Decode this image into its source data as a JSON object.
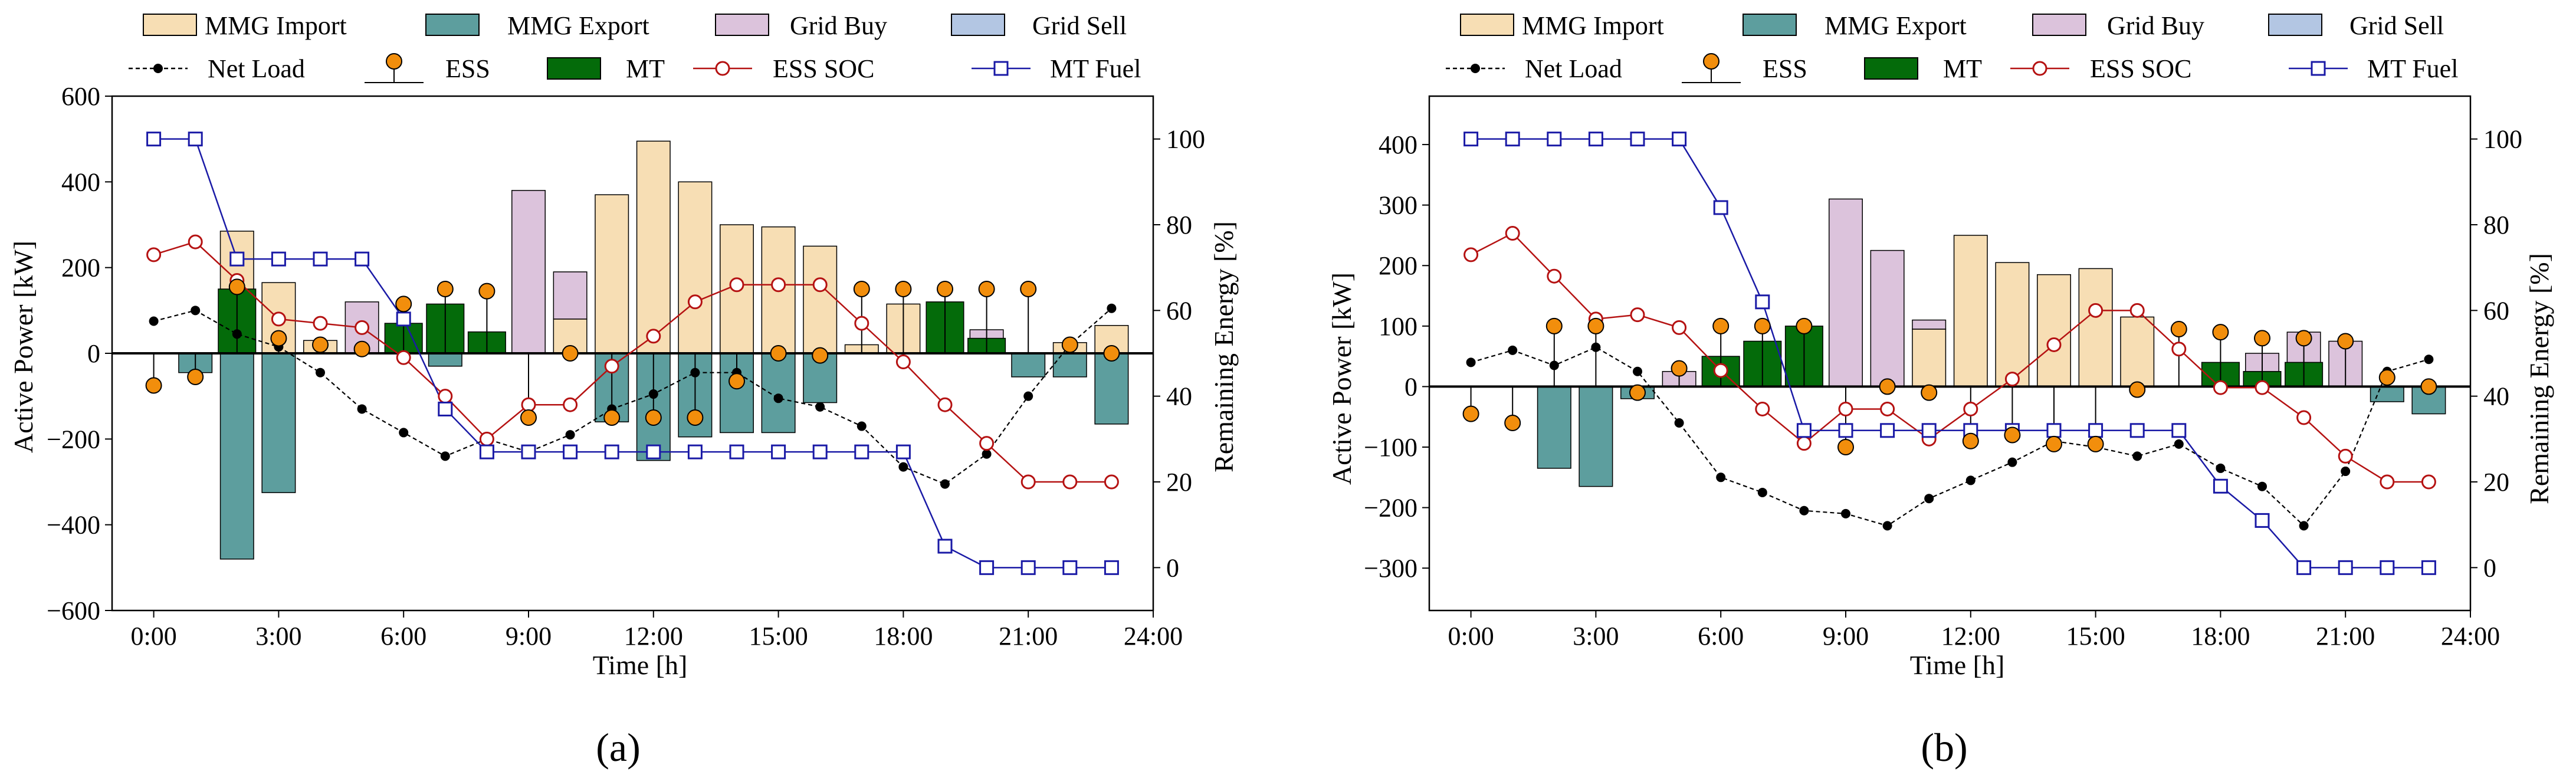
{
  "legend": {
    "mmg_import": "MMG Import",
    "mmg_export": "MMG Export",
    "grid_buy": "Grid Buy",
    "grid_sell": "Grid Sell",
    "net_load": "Net Load",
    "ess": "ESS",
    "mt": "MT",
    "ess_soc": "ESS SOC",
    "mt_fuel": "MT Fuel"
  },
  "colors": {
    "mmg_import": "#f7deb4",
    "mmg_export": "#5d9e9e",
    "grid_buy": "#dcc3dc",
    "grid_sell": "#b3c6e3",
    "net_load": "#000000",
    "ess": "#f28e0c",
    "mt": "#046b0a",
    "ess_soc": "#b51212",
    "mt_fuel": "#1a1aa6"
  },
  "chart_data": [
    {
      "type": "bar+line",
      "label": "(a)",
      "xlabel": "Time [h]",
      "ylabel": "Active Power [kW]",
      "y2label": "Remaining Energy [%]",
      "xlim": [
        -1,
        24
      ],
      "ylim": [
        -600,
        600
      ],
      "y2lim": [
        -10,
        110
      ],
      "xticks": [
        0,
        3,
        6,
        9,
        12,
        15,
        18,
        21,
        24
      ],
      "xticklabels": [
        "0:00",
        "3:00",
        "6:00",
        "9:00",
        "12:00",
        "15:00",
        "18:00",
        "21:00",
        "24:00"
      ],
      "yticks": [
        -600,
        -400,
        -200,
        0,
        200,
        400,
        600
      ],
      "y2ticks": [
        0,
        20,
        40,
        60,
        80,
        100
      ],
      "hours": [
        0,
        1,
        2,
        3,
        4,
        5,
        6,
        7,
        8,
        9,
        10,
        11,
        12,
        13,
        14,
        15,
        16,
        17,
        18,
        19,
        20,
        21,
        22,
        23
      ],
      "mmg_import": [
        0,
        0,
        285,
        165,
        30,
        0,
        0,
        0,
        0,
        0,
        80,
        370,
        495,
        400,
        300,
        295,
        250,
        20,
        115,
        0,
        0,
        0,
        25,
        65
      ],
      "mmg_export": [
        0,
        -45,
        -480,
        -325,
        0,
        0,
        0,
        -30,
        0,
        0,
        0,
        -160,
        -250,
        -195,
        -185,
        -185,
        -115,
        0,
        0,
        0,
        0,
        -55,
        -55,
        -165
      ],
      "grid_buy": [
        0,
        0,
        0,
        0,
        0,
        120,
        0,
        0,
        0,
        380,
        110,
        0,
        0,
        0,
        0,
        0,
        0,
        0,
        0,
        35,
        55,
        0,
        0,
        0
      ],
      "grid_sell": [
        0,
        0,
        0,
        0,
        0,
        0,
        0,
        0,
        0,
        0,
        0,
        0,
        0,
        0,
        0,
        0,
        0,
        0,
        0,
        0,
        0,
        0,
        0,
        0
      ],
      "mt": [
        0,
        0,
        150,
        0,
        0,
        0,
        70,
        115,
        50,
        0,
        0,
        0,
        0,
        0,
        0,
        0,
        0,
        0,
        0,
        120,
        35,
        0,
        0,
        0
      ],
      "net_load": [
        75,
        100,
        45,
        15,
        -45,
        -130,
        -185,
        -240,
        -200,
        -230,
        -190,
        -130,
        -95,
        -45,
        -45,
        -105,
        -125,
        -170,
        -265,
        -305,
        -235,
        -100,
        20,
        105
      ],
      "ess": [
        -75,
        -55,
        155,
        35,
        20,
        10,
        115,
        150,
        145,
        -150,
        0,
        -150,
        -150,
        -150,
        -65,
        0,
        -5,
        150,
        150,
        150,
        150,
        150,
        20,
        0
      ],
      "ess_soc": [
        73,
        76,
        67,
        58,
        57,
        56,
        49,
        40,
        30,
        38,
        38,
        47,
        54,
        62,
        66,
        66,
        66,
        57,
        48,
        38,
        29,
        20,
        20,
        20
      ],
      "mt_fuel": [
        100,
        100,
        72,
        72,
        72,
        72,
        58,
        37,
        27,
        27,
        27,
        27,
        27,
        27,
        27,
        27,
        27,
        27,
        27,
        5,
        0,
        0,
        0,
        0
      ]
    },
    {
      "type": "bar+line",
      "label": "(b)",
      "xlabel": "Time [h]",
      "ylabel": "Active Power [kW]",
      "y2label": "Remaining Energy [%]",
      "xlim": [
        -1,
        24
      ],
      "ylim": [
        -370,
        480
      ],
      "y2lim": [
        -10,
        110
      ],
      "xticks": [
        0,
        3,
        6,
        9,
        12,
        15,
        18,
        21,
        24
      ],
      "xticklabels": [
        "0:00",
        "3:00",
        "6:00",
        "9:00",
        "12:00",
        "15:00",
        "18:00",
        "21:00",
        "24:00"
      ],
      "yticks": [
        -300,
        -200,
        -100,
        0,
        100,
        200,
        300,
        400
      ],
      "y2ticks": [
        0,
        20,
        40,
        60,
        80,
        100
      ],
      "hours": [
        0,
        1,
        2,
        3,
        4,
        5,
        6,
        7,
        8,
        9,
        10,
        11,
        12,
        13,
        14,
        15,
        16,
        17,
        18,
        19,
        20,
        21,
        22,
        23
      ],
      "mmg_import": [
        0,
        0,
        0,
        0,
        0,
        0,
        0,
        0,
        0,
        0,
        0,
        95,
        250,
        205,
        185,
        195,
        115,
        0,
        0,
        0,
        0,
        0,
        0,
        0
      ],
      "mmg_export": [
        0,
        0,
        -135,
        -165,
        -20,
        0,
        0,
        0,
        0,
        0,
        0,
        0,
        0,
        0,
        0,
        0,
        0,
        0,
        0,
        0,
        0,
        0,
        -25,
        -45
      ],
      "grid_buy": [
        0,
        0,
        0,
        0,
        0,
        25,
        0,
        0,
        0,
        310,
        225,
        15,
        0,
        0,
        0,
        0,
        0,
        0,
        0,
        55,
        90,
        75,
        0,
        0
      ],
      "grid_sell": [
        0,
        0,
        0,
        0,
        0,
        0,
        0,
        0,
        0,
        0,
        0,
        0,
        0,
        0,
        0,
        0,
        0,
        0,
        0,
        0,
        0,
        0,
        0,
        0
      ],
      "mt": [
        0,
        0,
        0,
        0,
        0,
        0,
        50,
        75,
        100,
        0,
        0,
        0,
        0,
        0,
        0,
        0,
        0,
        0,
        40,
        25,
        40,
        0,
        0,
        0
      ],
      "net_load": [
        40,
        60,
        35,
        65,
        25,
        -60,
        -150,
        -175,
        -205,
        -210,
        -230,
        -185,
        -155,
        -125,
        -90,
        -100,
        -115,
        -95,
        -135,
        -165,
        -230,
        -140,
        25,
        45
      ],
      "ess": [
        -45,
        -60,
        100,
        100,
        -10,
        30,
        100,
        100,
        100,
        -100,
        0,
        -10,
        -90,
        -80,
        -95,
        -95,
        -5,
        95,
        90,
        80,
        80,
        75,
        15,
        0
      ],
      "ess_soc": [
        73,
        78,
        68,
        58,
        59,
        56,
        46,
        37,
        29,
        37,
        37,
        30,
        37,
        44,
        52,
        60,
        60,
        51,
        42,
        42,
        35,
        26,
        20,
        20
      ],
      "mt_fuel": [
        100,
        100,
        100,
        100,
        100,
        100,
        84,
        62,
        32,
        32,
        32,
        32,
        32,
        32,
        32,
        32,
        32,
        32,
        19,
        11,
        0,
        0,
        0,
        0
      ]
    }
  ]
}
